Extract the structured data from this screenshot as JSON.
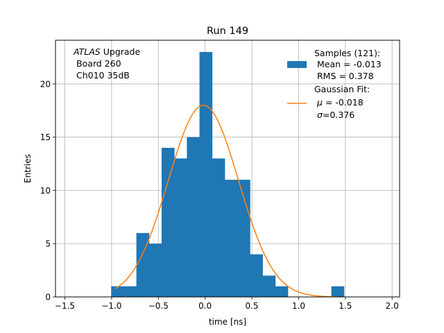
{
  "chart_data": {
    "type": "bar",
    "title": "Run 149",
    "xlabel": "time [ns]",
    "ylabel": "Entries",
    "xlim": [
      -1.6,
      2.08
    ],
    "ylim": [
      0,
      24.1
    ],
    "xticks": [
      -1.5,
      -1.0,
      -0.5,
      0.0,
      0.5,
      1.0,
      1.5,
      2.0
    ],
    "xtick_labels": [
      "−1.5",
      "−1.0",
      "−0.5",
      "0.0",
      "0.5",
      "1.0",
      "1.5",
      "2.0"
    ],
    "yticks": [
      0,
      5,
      10,
      15,
      20
    ],
    "ytick_labels": [
      "0",
      "5",
      "10",
      "15",
      "20"
    ],
    "grid": true,
    "annotation": {
      "line1_italic": "ATLAS",
      "line1_rest": " Upgrade",
      "line2": " Board 260",
      "line3": " Ch010 35dB"
    },
    "legend": {
      "position": "top-right",
      "hist_lines": [
        "Samples (121):",
        " Mean = -0.013",
        " RMS = 0.378"
      ],
      "fit_line1": "Gaussian Fit:",
      "fit_mu_label": "μ",
      "fit_mu_value": " = -0.018",
      "fit_sigma_label": "σ",
      "fit_sigma_value": "=0.376"
    },
    "histogram": {
      "name": "Samples (121):",
      "color": "#1f77b4",
      "bins": [
        {
          "x0": -1.005,
          "x1": -0.87,
          "count": 1
        },
        {
          "x0": -0.87,
          "x1": -0.735,
          "count": 1
        },
        {
          "x0": -0.735,
          "x1": -0.6,
          "count": 6
        },
        {
          "x0": -0.6,
          "x1": -0.465,
          "count": 5
        },
        {
          "x0": -0.465,
          "x1": -0.33,
          "count": 14
        },
        {
          "x0": -0.33,
          "x1": -0.195,
          "count": 13
        },
        {
          "x0": -0.195,
          "x1": -0.06,
          "count": 15
        },
        {
          "x0": -0.06,
          "x1": 0.075,
          "count": 23
        },
        {
          "x0": 0.075,
          "x1": 0.21,
          "count": 13
        },
        {
          "x0": 0.21,
          "x1": 0.345,
          "count": 11
        },
        {
          "x0": 0.345,
          "x1": 0.48,
          "count": 11
        },
        {
          "x0": 0.48,
          "x1": 0.615,
          "count": 4
        },
        {
          "x0": 0.615,
          "x1": 0.75,
          "count": 2
        },
        {
          "x0": 0.75,
          "x1": 0.885,
          "count": 1
        },
        {
          "x0": 1.35,
          "x1": 1.485,
          "count": 1
        }
      ]
    },
    "fit": {
      "name": "Gaussian Fit",
      "color": "#ff7f0e",
      "mu": -0.018,
      "sigma": 0.376,
      "amplitude": 18.0,
      "x_range": [
        -0.96,
        1.41
      ]
    }
  }
}
